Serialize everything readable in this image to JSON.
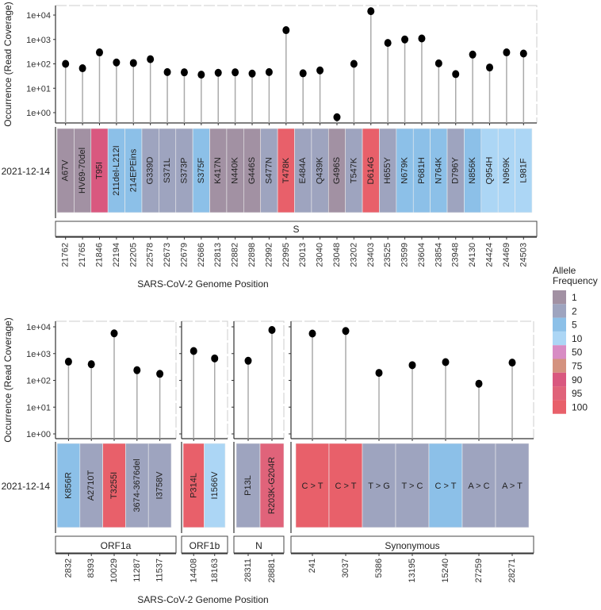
{
  "chart_data": {
    "type": "lollipop",
    "y_label": "Occurrence (Read Coverage)",
    "x_label": "SARS-CoV-2 Genome Position",
    "y_scale": "log10",
    "y_ticks": [
      "1e+00",
      "1e+01",
      "1e+02",
      "1e+03",
      "1e+04"
    ],
    "sample": "2021-12-14",
    "legend": {
      "title_line1": "Allele",
      "title_line2": "Frequency",
      "placement": "right",
      "entries": [
        {
          "label": "1",
          "color": "#a291a3"
        },
        {
          "label": "2",
          "color": "#9ea4bf"
        },
        {
          "label": "5",
          "color": "#8cc0e8"
        },
        {
          "label": "10",
          "color": "#acd6f5"
        },
        {
          "label": "50",
          "color": "#d88cc4"
        },
        {
          "label": "75",
          "color": "#d4927f"
        },
        {
          "label": "90",
          "color": "#d9587f"
        },
        {
          "label": "95",
          "color": "#e0637a"
        },
        {
          "label": "100",
          "color": "#e8606a"
        }
      ]
    },
    "panels": [
      {
        "gene": "S",
        "points": [
          {
            "pos": "21762",
            "mut": "A67V",
            "cov": 100,
            "freq": "1"
          },
          {
            "pos": "21765",
            "mut": "HV69-70del",
            "cov": 66,
            "freq": "1"
          },
          {
            "pos": "21846",
            "mut": "T95I",
            "cov": 295,
            "freq": "90"
          },
          {
            "pos": "22194",
            "mut": "211del-L212I",
            "cov": 114,
            "freq": "5"
          },
          {
            "pos": "22205",
            "mut": "214EPEins",
            "cov": 108,
            "freq": "5"
          },
          {
            "pos": "22578",
            "mut": "G339D",
            "cov": 155,
            "freq": "2"
          },
          {
            "pos": "22673",
            "mut": "S371L",
            "cov": 46,
            "freq": "2"
          },
          {
            "pos": "22679",
            "mut": "S373P",
            "cov": 45,
            "freq": "2"
          },
          {
            "pos": "22686",
            "mut": "S375F",
            "cov": 36,
            "freq": "5"
          },
          {
            "pos": "22813",
            "mut": "K417N",
            "cov": 43,
            "freq": "1"
          },
          {
            "pos": "22882",
            "mut": "N440K",
            "cov": 45,
            "freq": "1"
          },
          {
            "pos": "22898",
            "mut": "G446S",
            "cov": 40,
            "freq": "1"
          },
          {
            "pos": "22992",
            "mut": "S477N",
            "cov": 46,
            "freq": "2"
          },
          {
            "pos": "22995",
            "mut": "T478K",
            "cov": 2400,
            "freq": "100"
          },
          {
            "pos": "23013",
            "mut": "E484A",
            "cov": 41,
            "freq": "2"
          },
          {
            "pos": "23040",
            "mut": "Q439K",
            "cov": 54,
            "freq": "2"
          },
          {
            "pos": "23048",
            "mut": "G496S",
            "cov": 0.65,
            "freq": "1"
          },
          {
            "pos": "23202",
            "mut": "T547K",
            "cov": 100,
            "freq": "2"
          },
          {
            "pos": "23403",
            "mut": "D614G",
            "cov": 14400,
            "freq": "100"
          },
          {
            "pos": "23525",
            "mut": "H655Y",
            "cov": 720,
            "freq": "2"
          },
          {
            "pos": "23599",
            "mut": "N679K",
            "cov": 1000,
            "freq": "5"
          },
          {
            "pos": "23604",
            "mut": "P681H",
            "cov": 1100,
            "freq": "5"
          },
          {
            "pos": "23854",
            "mut": "N764K",
            "cov": 105,
            "freq": "5"
          },
          {
            "pos": "23948",
            "mut": "D796Y",
            "cov": 38,
            "freq": "2"
          },
          {
            "pos": "24130",
            "mut": "N856K",
            "cov": 240,
            "freq": "5"
          },
          {
            "pos": "24424",
            "mut": "Q954H",
            "cov": 71,
            "freq": "10"
          },
          {
            "pos": "24469",
            "mut": "N969K",
            "cov": 295,
            "freq": "10"
          },
          {
            "pos": "24503",
            "mut": "L981F",
            "cov": 265,
            "freq": "10"
          }
        ]
      },
      {
        "gene": "ORF1a",
        "points": [
          {
            "pos": "2832",
            "mut": "K856R",
            "cov": 500,
            "freq": "5"
          },
          {
            "pos": "8393",
            "mut": "A2710T",
            "cov": 400,
            "freq": "2"
          },
          {
            "pos": "10029",
            "mut": "T3255I",
            "cov": 5700,
            "freq": "100"
          },
          {
            "pos": "11287",
            "mut": "3674-3676del",
            "cov": 240,
            "freq": "2"
          },
          {
            "pos": "11537",
            "mut": "I3758V",
            "cov": 175,
            "freq": "2"
          }
        ]
      },
      {
        "gene": "ORF1b",
        "points": [
          {
            "pos": "14408",
            "mut": "P314L",
            "cov": 1250,
            "freq": "100"
          },
          {
            "pos": "18163",
            "mut": "I1566V",
            "cov": 660,
            "freq": "10"
          }
        ]
      },
      {
        "gene": "N",
        "points": [
          {
            "pos": "28311",
            "mut": "P13L",
            "cov": 540,
            "freq": "2"
          },
          {
            "pos": "28881",
            "mut": "R203K-G204R",
            "cov": 7600,
            "freq": "95"
          }
        ]
      },
      {
        "gene": "Synonymous",
        "points": [
          {
            "pos": "241",
            "mut": "C > T",
            "cov": 5600,
            "freq": "100"
          },
          {
            "pos": "3037",
            "mut": "C > T",
            "cov": 7000,
            "freq": "100"
          },
          {
            "pos": "5386",
            "mut": "T > G",
            "cov": 190,
            "freq": "2"
          },
          {
            "pos": "13195",
            "mut": "T > C",
            "cov": 370,
            "freq": "2"
          },
          {
            "pos": "15240",
            "mut": "C > T",
            "cov": 480,
            "freq": "5"
          },
          {
            "pos": "27259",
            "mut": "A > C",
            "cov": 75,
            "freq": "2"
          },
          {
            "pos": "28271",
            "mut": "A > T",
            "cov": 460,
            "freq": "2"
          }
        ]
      }
    ]
  }
}
